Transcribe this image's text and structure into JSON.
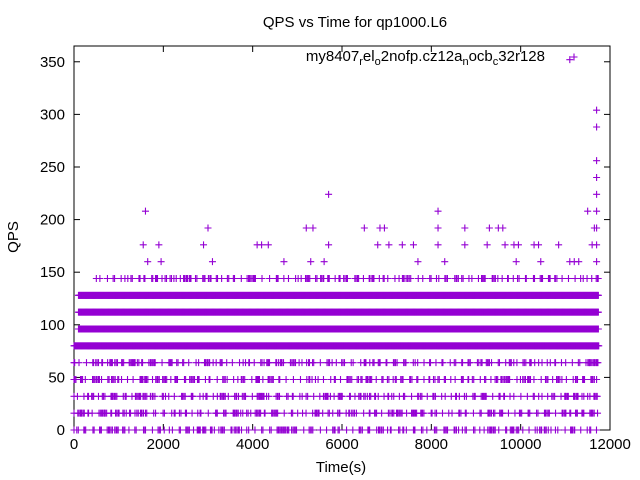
{
  "chart_data": {
    "type": "scatter",
    "title": "QPS vs Time for qp1000.L6",
    "xlabel": "Time(s)",
    "ylabel": "QPS",
    "xlim": [
      0,
      12000
    ],
    "ylim": [
      0,
      365
    ],
    "xticks": [
      0,
      2000,
      4000,
      6000,
      8000,
      10000,
      12000
    ],
    "yticks": [
      0,
      50,
      100,
      150,
      200,
      250,
      300,
      350
    ],
    "grid": false,
    "legend_position": "top-right",
    "marker": "plus",
    "colors": {
      "series": "#9400d3",
      "axis": "#000000"
    },
    "legend": {
      "parts": [
        {
          "text": "my8407",
          "sub": false
        },
        {
          "text": "r",
          "sub": true
        },
        {
          "text": "el",
          "sub": false
        },
        {
          "text": "o",
          "sub": true
        },
        {
          "text": "2nofp.cz12a",
          "sub": false
        },
        {
          "text": "n",
          "sub": true
        },
        {
          "text": "ocb",
          "sub": false
        },
        {
          "text": "c",
          "sub": true
        },
        {
          "text": "32r128",
          "sub": false
        }
      ]
    },
    "series": [
      {
        "dense_bands": [
          {
            "y": 128,
            "x_from": 100,
            "x_to": 11750
          },
          {
            "y": 112,
            "x_from": 100,
            "x_to": 11750
          },
          {
            "y": 96,
            "x_from": 100,
            "x_to": 11750
          },
          {
            "y": 80,
            "x_from": 0,
            "x_to": 11750
          }
        ],
        "sparse_bands": [
          {
            "y": 144,
            "x_from": 500,
            "x_to": 11750
          },
          {
            "y": 64,
            "x_from": 0,
            "x_to": 11750
          },
          {
            "y": 48,
            "x_from": 0,
            "x_to": 11750
          },
          {
            "y": 32,
            "x_from": 0,
            "x_to": 11750
          },
          {
            "y": 16,
            "x_from": 0,
            "x_to": 11750
          },
          {
            "y": 0,
            "x_from": 0,
            "x_to": 11750
          }
        ],
        "points": [
          [
            1600,
            208
          ],
          [
            1650,
            160
          ],
          [
            1550,
            176
          ],
          [
            1900,
            176
          ],
          [
            1950,
            160
          ],
          [
            3000,
            192
          ],
          [
            2900,
            176
          ],
          [
            3100,
            160
          ],
          [
            4100,
            176
          ],
          [
            4200,
            176
          ],
          [
            4350,
            176
          ],
          [
            4700,
            160
          ],
          [
            5200,
            192
          ],
          [
            5350,
            192
          ],
          [
            5300,
            160
          ],
          [
            5700,
            224
          ],
          [
            5700,
            176
          ],
          [
            5600,
            160
          ],
          [
            6500,
            192
          ],
          [
            6850,
            192
          ],
          [
            6950,
            192
          ],
          [
            6800,
            176
          ],
          [
            7050,
            176
          ],
          [
            7350,
            176
          ],
          [
            7600,
            176
          ],
          [
            7700,
            160
          ],
          [
            8150,
            208
          ],
          [
            8150,
            192
          ],
          [
            8150,
            176
          ],
          [
            8300,
            160
          ],
          [
            8750,
            192
          ],
          [
            8750,
            176
          ],
          [
            9300,
            192
          ],
          [
            9500,
            192
          ],
          [
            9600,
            192
          ],
          [
            9250,
            176
          ],
          [
            9650,
            176
          ],
          [
            9850,
            176
          ],
          [
            9950,
            176
          ],
          [
            10300,
            176
          ],
          [
            10400,
            176
          ],
          [
            10850,
            176
          ],
          [
            9900,
            160
          ],
          [
            10450,
            160
          ],
          [
            11100,
            160
          ],
          [
            11200,
            160
          ],
          [
            11300,
            160
          ],
          [
            11100,
            352
          ],
          [
            11500,
            208
          ],
          [
            11700,
            304
          ],
          [
            11700,
            288
          ],
          [
            11700,
            256
          ],
          [
            11700,
            240
          ],
          [
            11700,
            224
          ],
          [
            11700,
            208
          ],
          [
            11700,
            192
          ],
          [
            11650,
            192
          ],
          [
            11700,
            176
          ],
          [
            11600,
            176
          ],
          [
            11700,
            160
          ]
        ]
      }
    ]
  }
}
